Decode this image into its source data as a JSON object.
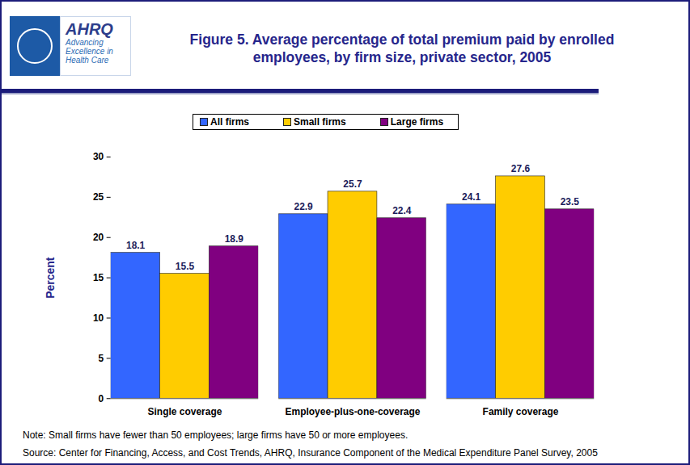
{
  "chart_data": {
    "type": "bar",
    "title": "Figure 5. Average percentage of total premium paid by enrolled employees, by firm size, private sector, 2005",
    "logo_text": [
      "AHRQ",
      "Advancing",
      "Excellence in",
      "Health Care"
    ],
    "y_label": "Percent",
    "categories": [
      "Single coverage",
      "Employee-plus-one-coverage",
      "Family coverage"
    ],
    "series": [
      {
        "name": "All firms",
        "color": "#3366ff",
        "values": [
          18.1,
          22.9,
          24.1
        ]
      },
      {
        "name": "Small firms",
        "color": "#ffcc00",
        "values": [
          15.5,
          25.7,
          27.6
        ]
      },
      {
        "name": "Large firms",
        "color": "#800080",
        "values": [
          18.9,
          22.4,
          23.5
        ]
      }
    ],
    "ylim": [
      0,
      30
    ],
    "yticks": [
      0,
      5,
      10,
      15,
      20,
      25,
      30
    ],
    "grid": false,
    "legend": "top",
    "data_labels": true,
    "annotations": [
      "Note: Small firms have fewer than 50 employees; large firms have 50 or more employees.",
      "Source: Center for Financing, Access, and Cost Trends, AHRQ, Insurance Component of the Medical Expenditure Panel Survey, 2005"
    ]
  }
}
